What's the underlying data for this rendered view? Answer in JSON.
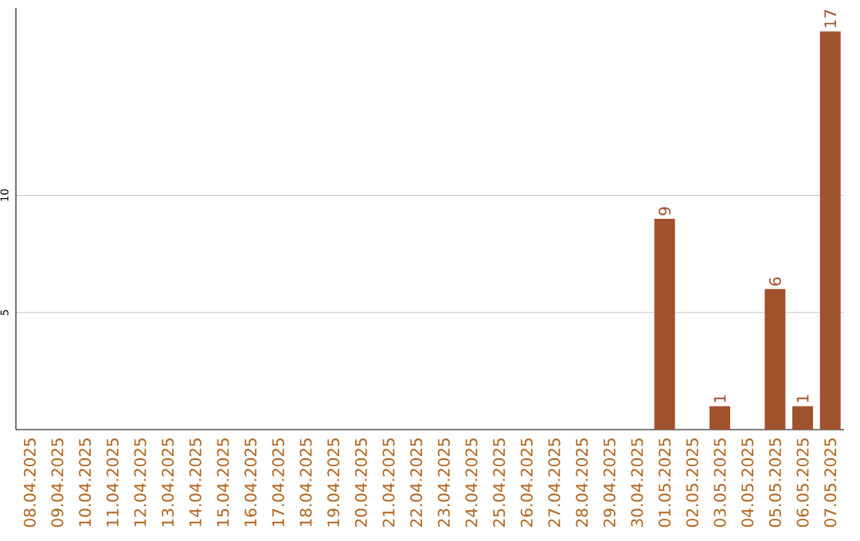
{
  "chart_data": {
    "type": "bar",
    "categories": [
      "08.04.2025",
      "09.04.2025",
      "10.04.2025",
      "11.04.2025",
      "12.04.2025",
      "13.04.2025",
      "14.04.2025",
      "15.04.2025",
      "16.04.2025",
      "17.04.2025",
      "18.04.2025",
      "19.04.2025",
      "20.04.2025",
      "21.04.2025",
      "22.04.2025",
      "23.04.2025",
      "24.04.2025",
      "25.04.2025",
      "26.04.2025",
      "27.04.2025",
      "28.04.2025",
      "29.04.2025",
      "30.04.2025",
      "01.05.2025",
      "02.05.2025",
      "03.05.2025",
      "04.05.2025",
      "05.05.2025",
      "06.05.2025",
      "07.05.2025"
    ],
    "values": [
      0,
      0,
      0,
      0,
      0,
      0,
      0,
      0,
      0,
      0,
      0,
      0,
      0,
      0,
      0,
      0,
      0,
      0,
      0,
      0,
      0,
      0,
      0,
      9,
      0,
      1,
      0,
      6,
      1,
      17
    ],
    "value_labels": [
      null,
      null,
      null,
      null,
      null,
      null,
      null,
      null,
      null,
      null,
      null,
      null,
      null,
      null,
      null,
      null,
      null,
      null,
      null,
      null,
      null,
      null,
      null,
      "9",
      null,
      "1",
      null,
      "6",
      "1",
      "17"
    ],
    "color": "#a0522d",
    "ylim": [
      0,
      18
    ],
    "yticks": [
      5,
      10
    ],
    "grid": "y"
  }
}
